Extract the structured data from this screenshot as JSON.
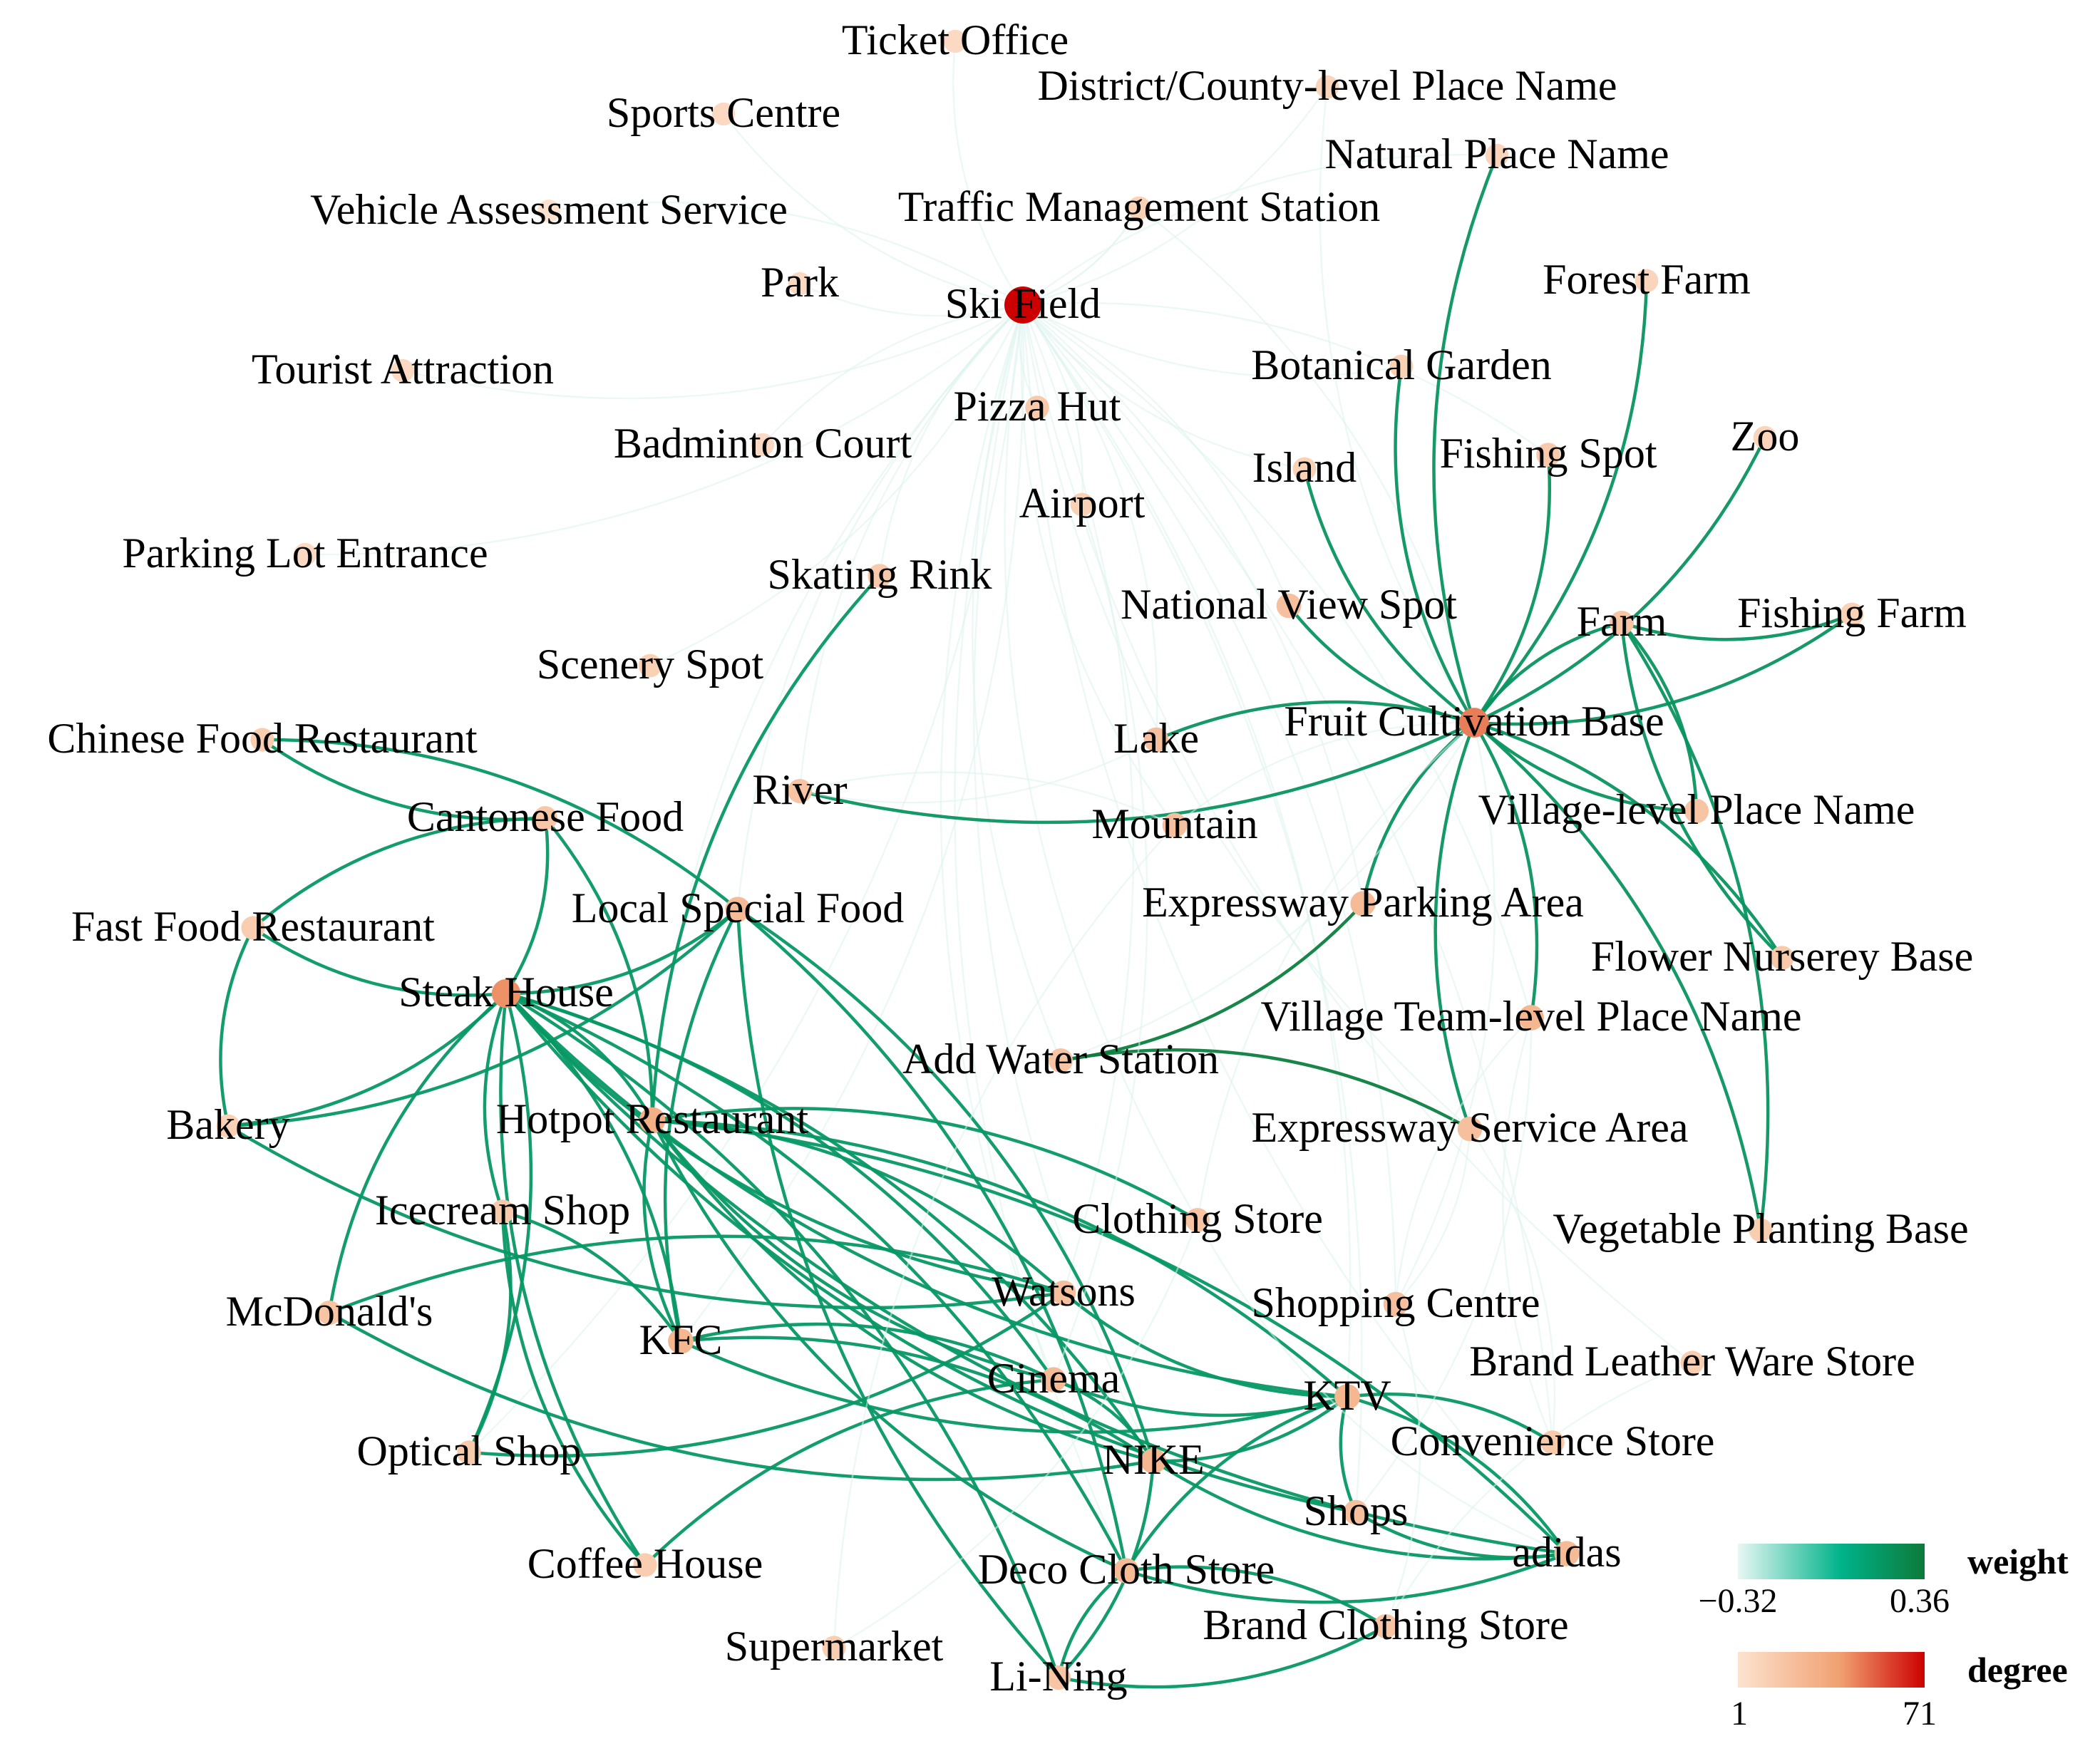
{
  "nodes": [
    {
      "id": "ticket-office",
      "label": "Ticket Office",
      "degree": 2
    },
    {
      "id": "district-county-level-place-name",
      "label": "District/County-level Place Name",
      "degree": 3
    },
    {
      "id": "sports-centre",
      "label": "Sports Centre",
      "degree": 2
    },
    {
      "id": "natural-place-name",
      "label": "Natural Place Name",
      "degree": 3
    },
    {
      "id": "vehicle-assessment-service",
      "label": "Vehicle Assessment Service",
      "degree": 1
    },
    {
      "id": "traffic-management-station",
      "label": "Traffic Management Station",
      "degree": 4
    },
    {
      "id": "forest-farm",
      "label": "Forest Farm",
      "degree": 3
    },
    {
      "id": "park",
      "label": "Park",
      "degree": 2
    },
    {
      "id": "ski-field",
      "label": "Ski Field",
      "degree": 71
    },
    {
      "id": "botanical-garden",
      "label": "Botanical Garden",
      "degree": 4
    },
    {
      "id": "tourist-attraction",
      "label": "Tourist Attraction",
      "degree": 2
    },
    {
      "id": "pizza-hut",
      "label": "Pizza Hut",
      "degree": 6
    },
    {
      "id": "zoo",
      "label": "Zoo",
      "degree": 3
    },
    {
      "id": "badminton-court",
      "label": "Badminton Court",
      "degree": 2
    },
    {
      "id": "island",
      "label": "Island",
      "degree": 4
    },
    {
      "id": "fishing-spot",
      "label": "Fishing Spot",
      "degree": 6
    },
    {
      "id": "airport",
      "label": "Airport",
      "degree": 4
    },
    {
      "id": "parking-lot-entrance",
      "label": "Parking Lot Entrance",
      "degree": 2
    },
    {
      "id": "skating-rink",
      "label": "Skating Rink",
      "degree": 6
    },
    {
      "id": "national-view-spot",
      "label": "National View Spot",
      "degree": 10
    },
    {
      "id": "farm",
      "label": "Farm",
      "degree": 8
    },
    {
      "id": "fishing-farm",
      "label": "Fishing Farm",
      "degree": 4
    },
    {
      "id": "scenery-spot",
      "label": "Scenery Spot",
      "degree": 4
    },
    {
      "id": "fruit-cultivation-base",
      "label": "Fruit Cultivation Base",
      "degree": 35
    },
    {
      "id": "chinese-food-restaurant",
      "label": "Chinese Food Restaurant",
      "degree": 5
    },
    {
      "id": "lake",
      "label": "Lake",
      "degree": 10
    },
    {
      "id": "river",
      "label": "River",
      "degree": 8
    },
    {
      "id": "cantonese-food",
      "label": "Cantonese Food",
      "degree": 7
    },
    {
      "id": "mountain",
      "label": "Mountain",
      "degree": 10
    },
    {
      "id": "village-level-place-name",
      "label": "Village-level Place Name",
      "degree": 8
    },
    {
      "id": "local-special-food",
      "label": "Local Special Food",
      "degree": 12
    },
    {
      "id": "fast-food-restaurant",
      "label": "Fast Food Restaurant",
      "degree": 5
    },
    {
      "id": "expressway-parking-area",
      "label": "Expressway Parking Area",
      "degree": 12
    },
    {
      "id": "steak-house",
      "label": "Steak House",
      "degree": 30
    },
    {
      "id": "flower-nursery-base",
      "label": "Flower Nurserey Base",
      "degree": 6
    },
    {
      "id": "village-team-level-place-name",
      "label": "Village Team-level Place Name",
      "degree": 14
    },
    {
      "id": "add-water-station",
      "label": "Add Water Station",
      "degree": 8
    },
    {
      "id": "bakery",
      "label": "Bakery",
      "degree": 4
    },
    {
      "id": "hotpot-restaurant",
      "label": "Hotpot Restaurant",
      "degree": 18
    },
    {
      "id": "expressway-service-area",
      "label": "Expressway Service Area",
      "degree": 10
    },
    {
      "id": "icecream-shop",
      "label": "Icecream Shop",
      "degree": 6
    },
    {
      "id": "clothing-store",
      "label": "Clothing Store",
      "degree": 8
    },
    {
      "id": "vegetable-planting-base",
      "label": "Vegetable Planting Base",
      "degree": 5
    },
    {
      "id": "mcdonalds",
      "label": "McDonald's",
      "degree": 8
    },
    {
      "id": "watsons",
      "label": "Watsons",
      "degree": 10
    },
    {
      "id": "shopping-centre",
      "label": "Shopping Centre",
      "degree": 10
    },
    {
      "id": "kfc",
      "label": "KFC",
      "degree": 14
    },
    {
      "id": "brand-leather-ware-store",
      "label": "Brand Leather Ware Store",
      "degree": 5
    },
    {
      "id": "cinema",
      "label": "Cinema",
      "degree": 12
    },
    {
      "id": "ktv",
      "label": "KTV",
      "degree": 14
    },
    {
      "id": "optical-shop",
      "label": "Optical Shop",
      "degree": 6
    },
    {
      "id": "convenience-store",
      "label": "Convenience Store",
      "degree": 6
    },
    {
      "id": "nike",
      "label": "NIKE",
      "degree": 14
    },
    {
      "id": "shops",
      "label": "Shops",
      "degree": 10
    },
    {
      "id": "coffee-house",
      "label": "Coffee House",
      "degree": 5
    },
    {
      "id": "adidas",
      "label": "adidas",
      "degree": 12
    },
    {
      "id": "deco-cloth-store",
      "label": "Deco Cloth Store",
      "degree": 12
    },
    {
      "id": "brand-clothing-store",
      "label": "Brand Clothing Store",
      "degree": 8
    },
    {
      "id": "supermarket",
      "label": "Supermarket",
      "degree": 5
    },
    {
      "id": "li-ning",
      "label": "Li-Ning",
      "degree": 8
    }
  ],
  "edges": [
    [
      "ski-field",
      "ticket-office",
      -0.3
    ],
    [
      "ski-field",
      "district-county-level-place-name",
      -0.3
    ],
    [
      "ski-field",
      "sports-centre",
      -0.3
    ],
    [
      "ski-field",
      "traffic-management-station",
      -0.28
    ],
    [
      "ski-field",
      "park",
      -0.3
    ],
    [
      "ski-field",
      "vehicle-assessment-service",
      -0.3
    ],
    [
      "ski-field",
      "tourist-attraction",
      -0.3
    ],
    [
      "ski-field",
      "badminton-court",
      -0.3
    ],
    [
      "ski-field",
      "parking-lot-entrance",
      -0.3
    ],
    [
      "ski-field",
      "pizza-hut",
      -0.3
    ],
    [
      "ski-field",
      "airport",
      -0.3
    ],
    [
      "ski-field",
      "skating-rink",
      -0.3
    ],
    [
      "ski-field",
      "scenery-spot",
      -0.3
    ],
    [
      "ski-field",
      "river",
      -0.3
    ],
    [
      "ski-field",
      "lake",
      -0.3
    ],
    [
      "ski-field",
      "mountain",
      -0.3
    ],
    [
      "ski-field",
      "national-view-spot",
      -0.3
    ],
    [
      "ski-field",
      "botanical-garden",
      -0.3
    ],
    [
      "ski-field",
      "natural-place-name",
      -0.3
    ],
    [
      "ski-field",
      "island",
      -0.3
    ],
    [
      "ski-field",
      "fishing-spot",
      -0.3
    ],
    [
      "ski-field",
      "add-water-station",
      -0.3
    ],
    [
      "ski-field",
      "kfc",
      -0.3
    ],
    [
      "ski-field",
      "hotpot-restaurant",
      -0.3
    ],
    [
      "ski-field",
      "watsons",
      -0.3
    ],
    [
      "ski-field",
      "cinema",
      -0.3
    ],
    [
      "ski-field",
      "ktv",
      -0.3
    ],
    [
      "ski-field",
      "nike",
      -0.3
    ],
    [
      "ski-field",
      "expressway-parking-area",
      -0.3
    ],
    [
      "ski-field",
      "clothing-store",
      -0.3
    ],
    [
      "ski-field",
      "shopping-centre",
      -0.3
    ],
    [
      "ski-field",
      "local-special-food",
      -0.3
    ],
    [
      "ski-field",
      "village-team-level-place-name",
      -0.3
    ],
    [
      "ski-field",
      "expressway-service-area",
      -0.3
    ],
    [
      "ski-field",
      "optical-shop",
      -0.3
    ],
    [
      "ski-field",
      "deco-cloth-store",
      -0.3
    ],
    [
      "ski-field",
      "shops",
      -0.3
    ],
    [
      "ski-field",
      "adidas",
      -0.3
    ],
    [
      "ski-field",
      "convenience-store",
      -0.3
    ],
    [
      "ski-field",
      "brand-leather-ware-store",
      -0.3
    ],
    [
      "traffic-management-station",
      "fruit-cultivation-base",
      -0.3
    ],
    [
      "district-county-level-place-name",
      "fruit-cultivation-base",
      -0.3
    ],
    [
      "fruit-cultivation-base",
      "natural-place-name",
      0.22
    ],
    [
      "fruit-cultivation-base",
      "forest-farm",
      0.22
    ],
    [
      "fruit-cultivation-base",
      "botanical-garden",
      0.22
    ],
    [
      "fruit-cultivation-base",
      "zoo",
      0.22
    ],
    [
      "fruit-cultivation-base",
      "island",
      0.22
    ],
    [
      "fruit-cultivation-base",
      "fishing-spot",
      0.22
    ],
    [
      "fruit-cultivation-base",
      "farm",
      0.22
    ],
    [
      "fruit-cultivation-base",
      "fishing-farm",
      0.22
    ],
    [
      "fruit-cultivation-base",
      "national-view-spot",
      0.22
    ],
    [
      "fruit-cultivation-base",
      "lake",
      0.22
    ],
    [
      "fruit-cultivation-base",
      "river",
      0.22
    ],
    [
      "fruit-cultivation-base",
      "village-level-place-name",
      0.22
    ],
    [
      "fruit-cultivation-base",
      "flower-nursery-base",
      0.22
    ],
    [
      "fruit-cultivation-base",
      "expressway-parking-area",
      0.22
    ],
    [
      "fruit-cultivation-base",
      "village-team-level-place-name",
      0.22
    ],
    [
      "fruit-cultivation-base",
      "expressway-service-area",
      0.22
    ],
    [
      "fruit-cultivation-base",
      "vegetable-planting-base",
      0.22
    ],
    [
      "fruit-cultivation-base",
      "mountain",
      -0.3
    ],
    [
      "fruit-cultivation-base",
      "add-water-station",
      -0.3
    ],
    [
      "fruit-cultivation-base",
      "clothing-store",
      -0.3
    ],
    [
      "fruit-cultivation-base",
      "shopping-centre",
      -0.3
    ],
    [
      "farm",
      "fishing-farm",
      0.22
    ],
    [
      "farm",
      "village-level-place-name",
      0.22
    ],
    [
      "farm",
      "flower-nursery-base",
      0.22
    ],
    [
      "farm",
      "vegetable-planting-base",
      0.22
    ],
    [
      "add-water-station",
      "expressway-parking-area",
      0.34
    ],
    [
      "add-water-station",
      "expressway-service-area",
      0.34
    ],
    [
      "steak-house",
      "cantonese-food",
      0.2
    ],
    [
      "steak-house",
      "fast-food-restaurant",
      0.2
    ],
    [
      "steak-house",
      "local-special-food",
      0.2
    ],
    [
      "steak-house",
      "bakery",
      0.2
    ],
    [
      "steak-house",
      "mcdonalds",
      0.2
    ],
    [
      "steak-house",
      "optical-shop",
      0.2
    ],
    [
      "steak-house",
      "coffee-house",
      0.2
    ],
    [
      "steak-house",
      "kfc",
      0.2
    ],
    [
      "steak-house",
      "watsons",
      0.2
    ],
    [
      "steak-house",
      "cinema",
      0.2
    ],
    [
      "steak-house",
      "ktv",
      0.2
    ],
    [
      "steak-house",
      "nike",
      0.2
    ],
    [
      "steak-house",
      "adidas",
      0.2
    ],
    [
      "steak-house",
      "deco-cloth-store",
      0.2
    ],
    [
      "steak-house",
      "shops",
      0.2
    ],
    [
      "steak-house",
      "hotpot-restaurant",
      0.2
    ],
    [
      "steak-house",
      "icecream-shop",
      0.2
    ],
    [
      "steak-house",
      "li-ning",
      0.2
    ],
    [
      "chinese-food-restaurant",
      "cantonese-food",
      0.2
    ],
    [
      "chinese-food-restaurant",
      "local-special-food",
      0.2
    ],
    [
      "cantonese-food",
      "fast-food-restaurant",
      0.2
    ],
    [
      "cantonese-food",
      "hotpot-restaurant",
      0.2
    ],
    [
      "fast-food-restaurant",
      "bakery",
      0.2
    ],
    [
      "local-special-food",
      "bakery",
      0.2
    ],
    [
      "local-special-food",
      "kfc",
      0.2
    ],
    [
      "local-special-food",
      "nike",
      0.2
    ],
    [
      "local-special-food",
      "li-ning",
      0.2
    ],
    [
      "local-special-food",
      "deco-cloth-store",
      0.2
    ],
    [
      "skating-rink",
      "hotpot-restaurant",
      0.2
    ],
    [
      "hotpot-restaurant",
      "watsons",
      0.2
    ],
    [
      "hotpot-restaurant",
      "cinema",
      0.2
    ],
    [
      "hotpot-restaurant",
      "ktv",
      0.2
    ],
    [
      "hotpot-restaurant",
      "nike",
      0.2
    ],
    [
      "hotpot-restaurant",
      "adidas",
      0.2
    ],
    [
      "hotpot-restaurant",
      "deco-cloth-store",
      0.2
    ],
    [
      "hotpot-restaurant",
      "clothing-store",
      0.2
    ],
    [
      "hotpot-restaurant",
      "kfc",
      0.2
    ],
    [
      "icecream-shop",
      "optical-shop",
      0.2
    ],
    [
      "icecream-shop",
      "coffee-house",
      0.2
    ],
    [
      "icecream-shop",
      "kfc",
      0.2
    ],
    [
      "bakery",
      "watsons",
      0.2
    ],
    [
      "mcdonalds",
      "watsons",
      0.2
    ],
    [
      "mcdonalds",
      "nike",
      0.2
    ],
    [
      "kfc",
      "cinema",
      0.2
    ],
    [
      "kfc",
      "ktv",
      0.2
    ],
    [
      "kfc",
      "nike",
      0.2
    ],
    [
      "watsons",
      "ktv",
      0.2
    ],
    [
      "watsons",
      "optical-shop",
      0.2
    ],
    [
      "cinema",
      "ktv",
      0.2
    ],
    [
      "cinema",
      "nike",
      0.2
    ],
    [
      "cinema",
      "coffee-house",
      0.2
    ],
    [
      "ktv",
      "nike",
      0.2
    ],
    [
      "ktv",
      "shops",
      0.2
    ],
    [
      "ktv",
      "adidas",
      0.2
    ],
    [
      "ktv",
      "deco-cloth-store",
      0.2
    ],
    [
      "ktv",
      "convenience-store",
      0.2
    ],
    [
      "nike",
      "adidas",
      0.2
    ],
    [
      "nike",
      "li-ning",
      0.2
    ],
    [
      "deco-cloth-store",
      "adidas",
      0.2
    ],
    [
      "deco-cloth-store",
      "brand-clothing-store",
      0.2
    ],
    [
      "shops",
      "adidas",
      0.2
    ],
    [
      "li-ning",
      "deco-cloth-store",
      0.2
    ],
    [
      "li-ning",
      "brand-clothing-store",
      0.2
    ],
    [
      "lake",
      "river",
      -0.3
    ],
    [
      "mountain",
      "river",
      -0.3
    ],
    [
      "expressway-service-area",
      "shopping-centre",
      -0.3
    ],
    [
      "village-team-level-place-name",
      "shopping-centre",
      -0.3
    ],
    [
      "village-team-level-place-name",
      "shops",
      -0.3
    ],
    [
      "village-team-level-place-name",
      "convenience-store",
      -0.3
    ],
    [
      "expressway-service-area",
      "convenience-store",
      -0.3
    ],
    [
      "mountain",
      "supermarket",
      -0.3
    ],
    [
      "clothing-store",
      "supermarket",
      -0.3
    ],
    [
      "brand-leather-ware-store",
      "brand-clothing-store",
      -0.3
    ],
    [
      "shopping-centre",
      "brand-clothing-store",
      -0.3
    ],
    [
      "clothing-store",
      "adidas",
      -0.3
    ],
    [
      "airport",
      "cinema",
      -0.3
    ]
  ],
  "legend": {
    "weight": {
      "title": "weight",
      "min_label": "−0.32",
      "max_label": "0.36",
      "colors": [
        "#e8f7f4",
        "#00b38a",
        "#0d7a3a"
      ]
    },
    "degree": {
      "title": "degree",
      "min_label": "1",
      "max_label": "71",
      "colors": [
        "#fde3cf",
        "#f0a070",
        "#cc0000"
      ]
    }
  }
}
